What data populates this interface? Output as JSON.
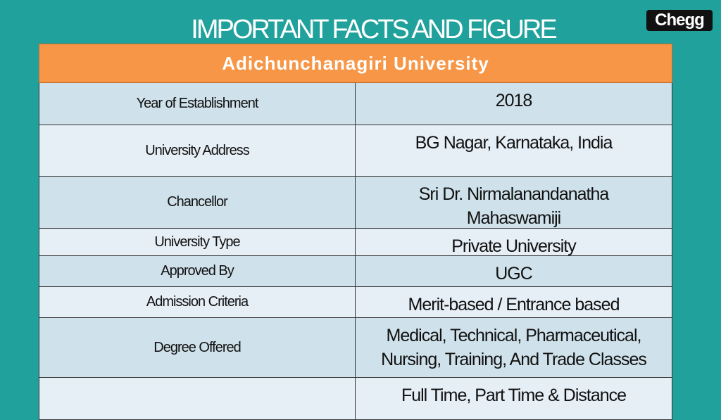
{
  "title": "IMPORTANT FACTS AND FIGURE",
  "logo": "Chegg",
  "table": {
    "header": "Adichunchanagiri University",
    "rows": [
      {
        "label": "Year of Establishment",
        "value": "2018"
      },
      {
        "label": "University Address",
        "value": "BG Nagar, Karnataka, India"
      },
      {
        "label": "Chancellor",
        "value": "Sri Dr. Nirmalanandanatha Mahaswamiji"
      },
      {
        "label": "University Type",
        "value": "Private University"
      },
      {
        "label": "Approved By",
        "value": "UGC"
      },
      {
        "label": "Admission Criteria",
        "value": "Merit-based / Entrance based"
      },
      {
        "label": "Degree Offered",
        "value": "Medical, Technical, Pharmaceutical, Nursing, Training, And Trade Classes"
      },
      {
        "value": "Full Time, Part Time & Distance"
      }
    ]
  }
}
